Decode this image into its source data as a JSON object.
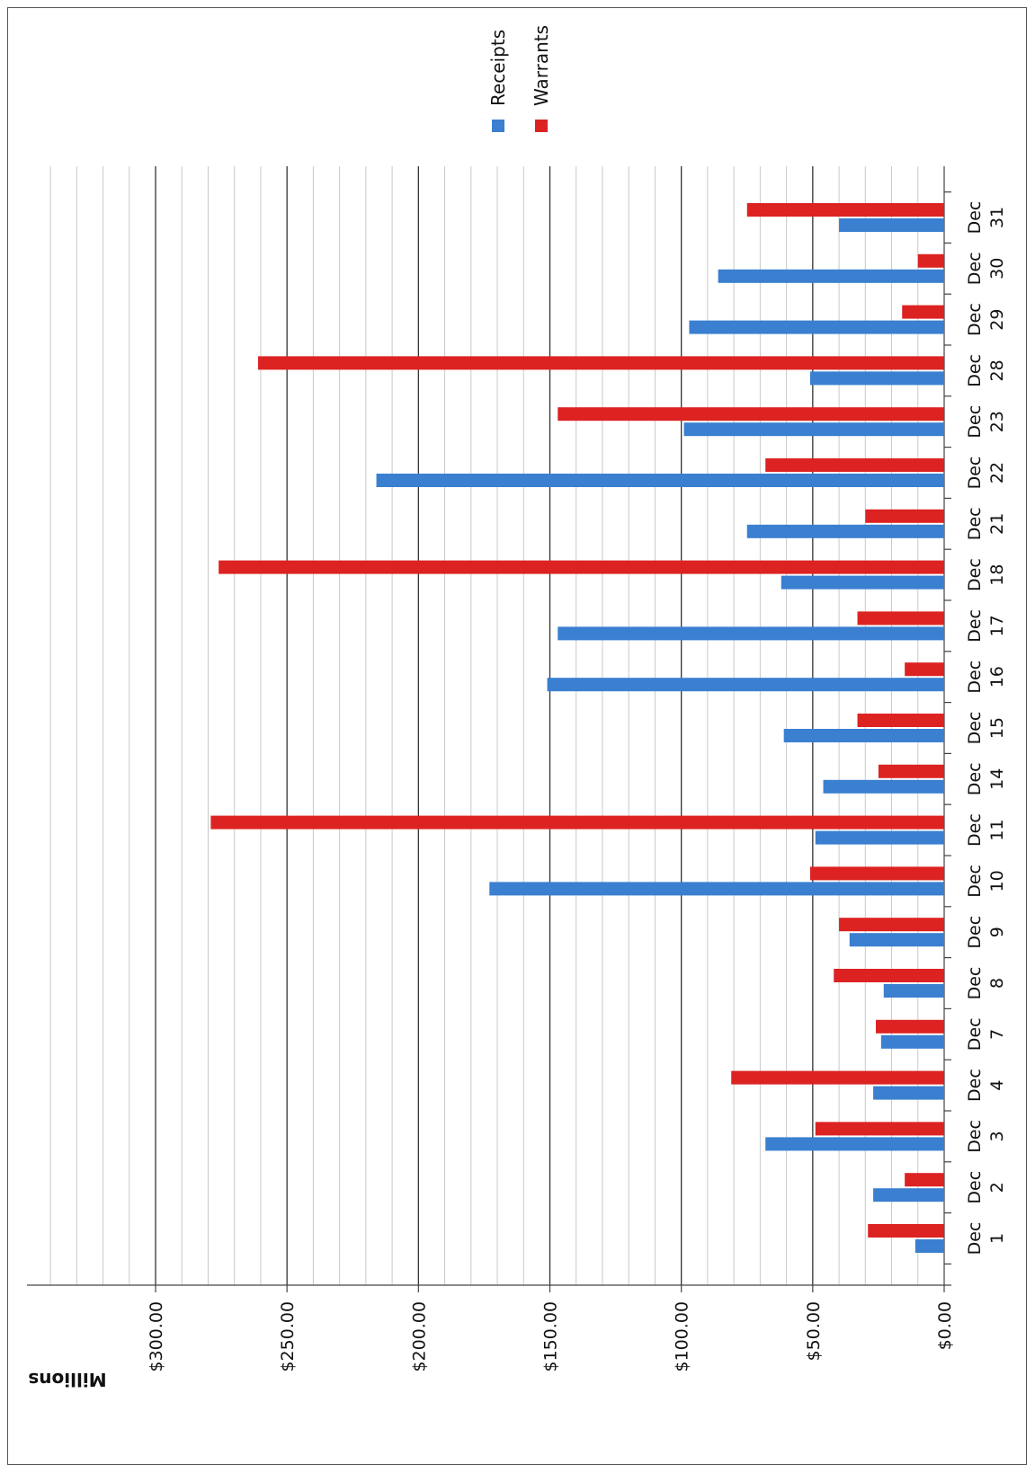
{
  "chart_data": {
    "type": "bar",
    "orientation": "horizontal",
    "rotation": "page rotated 90 degrees counter-clockwise",
    "unit_label": "Millions",
    "categories": [
      "Dec 1",
      "Dec 2",
      "Dec 3",
      "Dec 4",
      "Dec 7",
      "Dec 8",
      "Dec 9",
      "Dec 10",
      "Dec 11",
      "Dec 14",
      "Dec 15",
      "Dec 16",
      "Dec 17",
      "Dec 18",
      "Dec 21",
      "Dec 22",
      "Dec 23",
      "Dec 28",
      "Dec 29",
      "Dec 30",
      "Dec 31"
    ],
    "series": [
      {
        "name": "Receipts",
        "color": "#3a7fd0",
        "values": [
          11,
          27,
          68,
          27,
          24,
          23,
          36,
          173,
          49,
          46,
          61,
          151,
          147,
          62,
          75,
          216,
          99,
          51,
          97,
          86,
          40
        ]
      },
      {
        "name": "Warrants",
        "color": "#dd2222",
        "values": [
          29,
          15,
          49,
          81,
          26,
          42,
          40,
          51,
          279,
          25,
          33,
          15,
          33,
          276,
          30,
          68,
          147,
          261,
          16,
          10,
          75
        ]
      }
    ],
    "value_axis": {
      "range": [
        0,
        350
      ],
      "ticks": [
        0,
        50,
        100,
        150,
        200,
        250,
        300
      ],
      "tick_labels": [
        "$0.00",
        "$50.00",
        "$100.00",
        "$150.00",
        "$200.00",
        "$250.00",
        "$300.00"
      ],
      "minor_gridline_step": 10
    },
    "grid": true,
    "legend": {
      "position": "right",
      "entries": [
        "Receipts",
        "Warrants"
      ]
    }
  }
}
